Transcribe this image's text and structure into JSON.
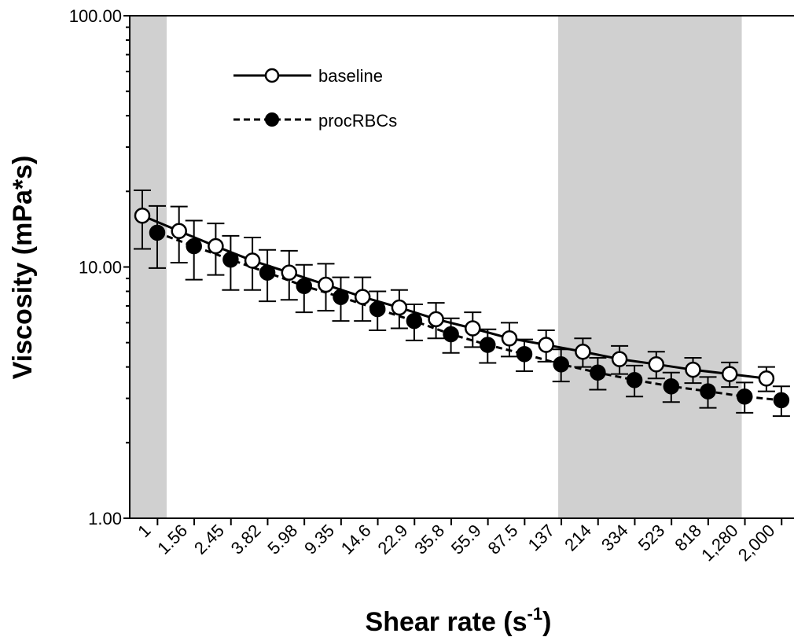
{
  "chart_data": {
    "type": "line",
    "title": "",
    "xlabel": "Shear rate (s",
    "xlabel_sup": "-1",
    "xlabel_end": ")",
    "ylabel": "Viscosity (mPa*s)",
    "y_scale": "log",
    "ylim": [
      1,
      100
    ],
    "y_ticks": [
      "1.00",
      "10.00",
      "100.00"
    ],
    "grid": false,
    "legend_position": "top-left",
    "categories": [
      "1",
      "1.56",
      "2.45",
      "3.82",
      "5.98",
      "9.35",
      "14.6",
      "22.9",
      "35.8",
      "55.9",
      "87.5",
      "137",
      "214",
      "334",
      "523",
      "818",
      "1,280",
      "2,000"
    ],
    "shaded_ranges": [
      [
        "1",
        "1"
      ],
      [
        "214",
        "1,280"
      ]
    ],
    "series": [
      {
        "name": "baseline",
        "line_style": "solid",
        "marker": "open-circle",
        "values": [
          16.0,
          13.9,
          12.1,
          10.6,
          9.5,
          8.5,
          7.6,
          6.9,
          6.2,
          5.7,
          5.2,
          4.9,
          4.6,
          4.3,
          4.1,
          3.9,
          3.75,
          3.6
        ],
        "errors": [
          4.2,
          3.5,
          2.8,
          2.5,
          2.1,
          1.8,
          1.5,
          1.2,
          1.0,
          0.9,
          0.8,
          0.7,
          0.6,
          0.55,
          0.5,
          0.45,
          0.42,
          0.4
        ]
      },
      {
        "name": "procRBCs",
        "line_style": "dashed",
        "marker": "filled-circle",
        "values": [
          13.7,
          12.1,
          10.7,
          9.5,
          8.4,
          7.6,
          6.8,
          6.1,
          5.4,
          4.9,
          4.5,
          4.1,
          3.8,
          3.55,
          3.35,
          3.2,
          3.05,
          2.95
        ],
        "errors": [
          3.8,
          3.2,
          2.6,
          2.2,
          1.8,
          1.5,
          1.2,
          1.0,
          0.85,
          0.75,
          0.65,
          0.6,
          0.55,
          0.5,
          0.45,
          0.45,
          0.42,
          0.4
        ]
      }
    ]
  },
  "colors": {
    "shade": "#d0d0d0",
    "axis": "#000000",
    "open_marker_fill": "#ffffff",
    "filled_marker_fill": "#000000"
  }
}
